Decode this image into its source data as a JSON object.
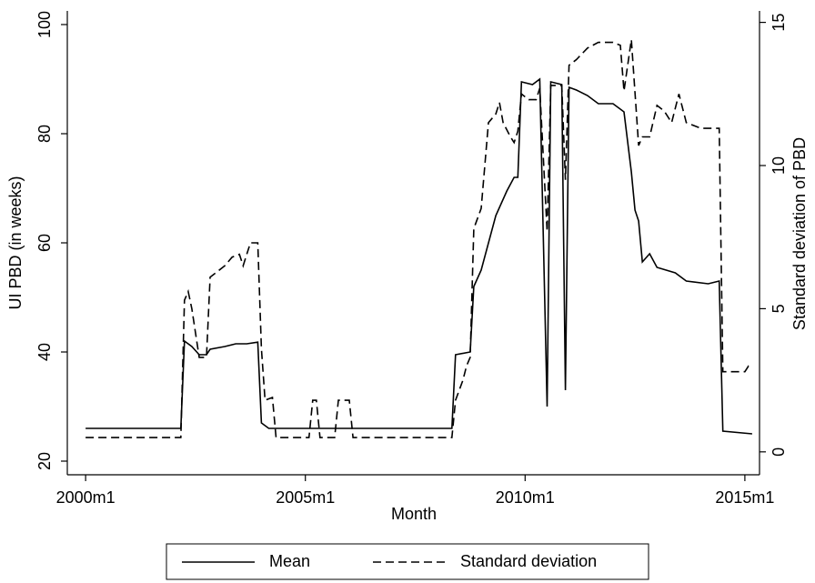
{
  "chart_data": {
    "type": "line",
    "xlabel": "Month",
    "ylabel": "UI PBD (in weeks)",
    "y2label": "Standard deviation of PBD",
    "xlim": [
      "1999m8",
      "2015m5"
    ],
    "xticks": [
      "2000m1",
      "2005m1",
      "2010m1",
      "2015m1"
    ],
    "ylim": [
      17.5,
      102.5
    ],
    "yticks": [
      20,
      40,
      60,
      80,
      100
    ],
    "y2lim": [
      -0.8,
      15.4
    ],
    "y2ticks": [
      0,
      5,
      10,
      15
    ],
    "legend": "bottom",
    "series": [
      {
        "name": "Mean",
        "color": "#000000",
        "dash": "solid",
        "x": [
          "2000m1",
          "2002m3",
          "2002m4",
          "2002m6",
          "2002m8",
          "2002m10",
          "2002m11",
          "2003m3",
          "2003m6",
          "2003m9",
          "2003m12",
          "2004m1",
          "2004m3",
          "2008m5",
          "2008m6",
          "2008m10",
          "2008m11",
          "2009m1",
          "2009m5",
          "2009m8",
          "2009m10",
          "2009m11",
          "2009m12",
          "2010m3",
          "2010m5",
          "2010m7",
          "2010m8",
          "2010m11",
          "2010m12",
          "2011m1",
          "2011m3",
          "2011m6",
          "2011m9",
          "2012m1",
          "2012m3",
          "2012m4",
          "2012m6",
          "2012m7",
          "2012m8",
          "2012m9",
          "2012m11",
          "2013m1",
          "2013m6",
          "2013m9",
          "2014m3",
          "2014m6",
          "2014m7",
          "2015m3"
        ],
        "values": [
          26,
          26,
          42,
          41,
          39.5,
          39.5,
          40.5,
          41,
          41.5,
          41.5,
          41.8,
          27,
          26,
          26,
          39.5,
          40,
          52,
          55,
          65,
          69.5,
          72,
          72,
          89.5,
          89,
          90,
          30,
          89.5,
          89,
          33,
          88.5,
          88,
          87,
          85.5,
          85.5,
          84.5,
          84,
          73,
          66,
          64,
          56.5,
          58,
          55.5,
          54.5,
          53,
          52.5,
          53,
          25.5,
          25
        ]
      },
      {
        "name": "Standard deviation",
        "color": "#000000",
        "dash": "dashed",
        "axis": "y2",
        "x": [
          "2000m1",
          "2002m3",
          "2002m4",
          "2002m5",
          "2002m6",
          "2002m8",
          "2002m10",
          "2002m11",
          "2003m1",
          "2003m3",
          "2003m5",
          "2003m7",
          "2003m8",
          "2003m10",
          "2003m12",
          "2004m1",
          "2004m2",
          "2004m4",
          "2004m5",
          "2005m2",
          "2005m3",
          "2005m4",
          "2005m5",
          "2005m9",
          "2005m10",
          "2006m1",
          "2006m2",
          "2008m5",
          "2008m6",
          "2008m8",
          "2008m9",
          "2008m10",
          "2008m11",
          "2009m1",
          "2009m3",
          "2009m5",
          "2009m6",
          "2009m7",
          "2009m9",
          "2009m10",
          "2009m11",
          "2009m12",
          "2010m2",
          "2010m4",
          "2010m5",
          "2010m7",
          "2010m8",
          "2010m11",
          "2010m12",
          "2011m1",
          "2011m3",
          "2011m6",
          "2011m9",
          "2012m1",
          "2012m3",
          "2012m4",
          "2012m6",
          "2012m8",
          "2012m9",
          "2012m11",
          "2013m1",
          "2013m3",
          "2013m5",
          "2013m7",
          "2013m9",
          "2014m1",
          "2014m6",
          "2014m7",
          "2015m1",
          "2015m2",
          "2015m3"
        ],
        "values": [
          0.5,
          0.5,
          5.3,
          5.6,
          5.0,
          3.3,
          3.3,
          6.1,
          6.3,
          6.5,
          6.8,
          6.9,
          6.5,
          7.3,
          7.3,
          3.6,
          1.8,
          1.9,
          0.5,
          0.5,
          1.8,
          1.8,
          0.5,
          0.5,
          1.8,
          1.8,
          0.5,
          0.5,
          1.8,
          2.5,
          3.0,
          3.3,
          7.8,
          8.5,
          11.5,
          11.8,
          12.2,
          11.5,
          11.0,
          10.8,
          11.2,
          12.5,
          12.3,
          12.3,
          12.7,
          7.7,
          12.8,
          12.8,
          9.5,
          13.5,
          13.7,
          14.1,
          14.3,
          14.3,
          14.2,
          12.6,
          14.4,
          10.7,
          11.0,
          11.0,
          12.1,
          11.9,
          11.5,
          12.5,
          11.5,
          11.3,
          11.3,
          2.8,
          2.8,
          3.0,
          3.0
        ]
      }
    ]
  }
}
